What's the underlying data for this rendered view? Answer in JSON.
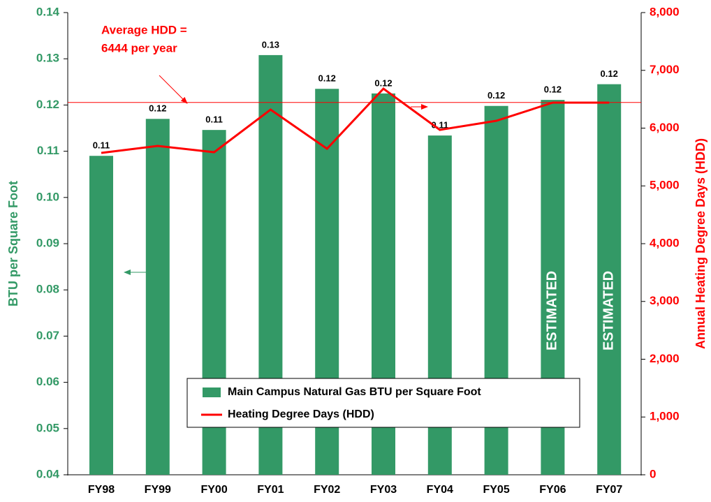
{
  "chart_data": {
    "type": "bar",
    "categories": [
      "FY98",
      "FY99",
      "FY00",
      "FY01",
      "FY02",
      "FY03",
      "FY04",
      "FY05",
      "FY06",
      "FY07"
    ],
    "series": [
      {
        "name": "Main Campus Natural Gas BTU per Square Foot",
        "color": "#339966",
        "type": "bar",
        "values": [
          0.109,
          0.117,
          0.1146,
          0.1308,
          0.1235,
          0.1225,
          0.1134,
          0.1198,
          0.1211,
          0.1245
        ],
        "value_labels": [
          "0.11",
          "0.12",
          "0.11",
          "0.13",
          "0.12",
          "0.12",
          "0.11",
          "0.12",
          "0.12",
          "0.12"
        ]
      },
      {
        "name": "Heating Degree Days (HDD)",
        "color": "#ff0000",
        "type": "line",
        "axis": "y2",
        "values": [
          5571,
          5692,
          5583,
          6320,
          5643,
          6683,
          5970,
          6127,
          6441,
          6441
        ]
      }
    ],
    "ylabel": "BTU per Square Foot",
    "y2label": "Annual Heating Degree Days (HDD)",
    "ylim": [
      0.04,
      0.14
    ],
    "yticks": [
      0.04,
      0.05,
      0.06,
      0.07,
      0.08,
      0.09,
      {
        "value": 0.1,
        "label": "0.10"
      },
      0.11,
      0.12,
      0.13,
      0.14
    ],
    "y2lim": [
      0,
      8000
    ],
    "y2ticks": [
      0,
      {
        "value": 1000,
        "label": "1,000"
      },
      {
        "value": 2000,
        "label": "2,000"
      },
      {
        "value": 3000,
        "label": "3,000"
      },
      {
        "value": 4000,
        "label": "4,000"
      },
      {
        "value": 5000,
        "label": "5,000"
      },
      {
        "value": 6000,
        "label": "6,000"
      },
      {
        "value": 7000,
        "label": "7,000"
      },
      {
        "value": 8000,
        "label": "8,000"
      }
    ],
    "reference_line": 6444,
    "annotations": [
      "Average HDD =",
      "6444 per year",
      "ESTIMATED",
      "ESTIMATED"
    ],
    "legend": "bottom-center"
  }
}
